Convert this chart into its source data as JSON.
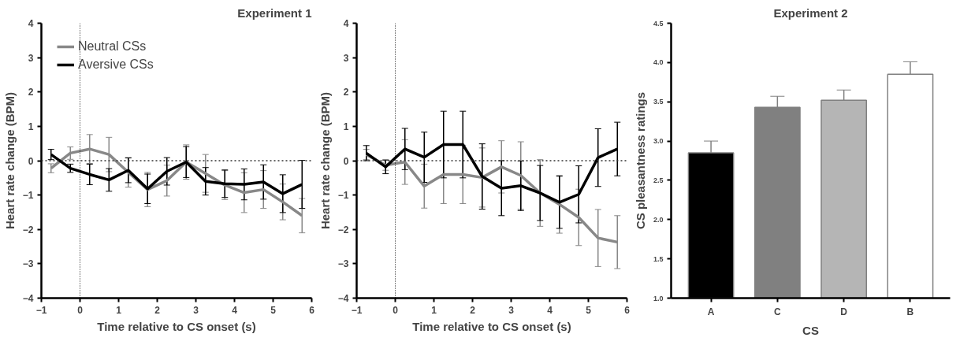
{
  "chart_data": [
    {
      "type": "line",
      "title": "Experiment 1",
      "xlabel": "Time relative to CS onset (s)",
      "ylabel": "Heart rate change (BPM)",
      "x": [
        -0.75,
        -0.25,
        0.25,
        0.75,
        1.25,
        1.75,
        2.25,
        2.75,
        3.25,
        3.75,
        4.25,
        4.75,
        5.25,
        5.75
      ],
      "series": [
        {
          "name": "Neutral CSs",
          "color": "#888888",
          "values": [
            -0.22,
            0.22,
            0.34,
            0.18,
            -0.34,
            -0.84,
            -0.58,
            -0.04,
            -0.37,
            -0.71,
            -0.93,
            -0.84,
            -1.2,
            -1.6
          ],
          "errors": [
            0.13,
            0.18,
            0.42,
            0.5,
            0.43,
            0.5,
            0.45,
            0.5,
            0.55,
            0.42,
            0.58,
            0.55,
            0.52,
            0.5
          ]
        },
        {
          "name": "Aversive CSs",
          "color": "#000000",
          "values": [
            0.18,
            -0.22,
            -0.4,
            -0.56,
            -0.28,
            -0.82,
            -0.31,
            -0.04,
            -0.6,
            -0.67,
            -0.69,
            -0.62,
            -0.96,
            -0.69
          ],
          "errors": [
            0.15,
            0.12,
            0.3,
            0.33,
            0.36,
            0.43,
            0.4,
            0.45,
            0.4,
            0.4,
            0.45,
            0.5,
            0.55,
            0.7
          ]
        }
      ],
      "xlim": [
        -1,
        6
      ],
      "xticks": [
        -1,
        0,
        1,
        2,
        3,
        4,
        5,
        6
      ],
      "ylim": [
        -4,
        4
      ],
      "yticks": [
        -4,
        -3,
        -2,
        -1,
        0,
        1,
        2,
        3,
        4
      ],
      "ref_lines": [
        {
          "axis": "x",
          "value": 0,
          "line_style": "dotted",
          "color": "#000000"
        },
        {
          "axis": "y",
          "value": 0,
          "line_style": "dotted",
          "color": "#333333"
        }
      ],
      "legend": "top left",
      "grid": false,
      "marker": "none",
      "line_style": "solid"
    },
    {
      "type": "line",
      "xlabel": "Time relative to CS onset (s)",
      "ylabel": "Heart rate change (BPM)",
      "x": [
        -0.75,
        -0.25,
        0.25,
        0.75,
        1.25,
        1.75,
        2.25,
        2.75,
        3.25,
        3.75,
        4.25,
        4.75,
        5.25,
        5.75
      ],
      "series": [
        {
          "color": "#888888",
          "values": [
            0.18,
            -0.13,
            -0.04,
            -0.74,
            -0.4,
            -0.4,
            -0.49,
            -0.18,
            -0.43,
            -0.94,
            -1.27,
            -1.65,
            -2.25,
            -2.37
          ],
          "errors": [
            0.15,
            0.15,
            0.65,
            0.64,
            0.85,
            0.85,
            0.86,
            0.76,
            0.98,
            0.97,
            0.84,
            0.82,
            0.83,
            0.77
          ]
        },
        {
          "color": "#000000",
          "values": [
            0.22,
            -0.18,
            0.34,
            0.1,
            0.47,
            0.47,
            -0.46,
            -0.8,
            -0.73,
            -0.94,
            -1.21,
            -0.98,
            0.09,
            0.34
          ],
          "errors": [
            0.22,
            0.2,
            0.6,
            0.73,
            0.97,
            0.97,
            0.95,
            0.8,
            0.72,
            0.8,
            0.76,
            0.83,
            0.84,
            0.78
          ]
        }
      ],
      "xlim": [
        -1,
        6
      ],
      "xticks": [
        -1,
        0,
        1,
        2,
        3,
        4,
        5,
        6
      ],
      "ylim": [
        -4,
        4
      ],
      "yticks": [
        -4,
        -3,
        -2,
        -1,
        0,
        1,
        2,
        3,
        4
      ],
      "ref_lines": [
        {
          "axis": "x",
          "value": 0,
          "line_style": "dotted",
          "color": "#000000"
        },
        {
          "axis": "y",
          "value": 0,
          "line_style": "dotted",
          "color": "#333333"
        }
      ],
      "grid": false,
      "marker": "none",
      "line_style": "solid"
    },
    {
      "type": "bar",
      "title": "Experiment 2",
      "xlabel": "CS",
      "ylabel": "CS pleasantness ratings",
      "categories": [
        "A",
        "C",
        "D",
        "B"
      ],
      "values": [
        2.85,
        3.43,
        3.52,
        3.85
      ],
      "errors": [
        0.15,
        0.14,
        0.13,
        0.16
      ],
      "colors": [
        "#000000",
        "#808080",
        "#b5b5b5",
        "#ffffff"
      ],
      "ylim": [
        1.0,
        4.5
      ],
      "yticks": [
        {
          "value": 1.0,
          "label": "1.0"
        },
        {
          "value": 1.5,
          "label": "1.5"
        },
        {
          "value": 2.0,
          "label": "2.0"
        },
        {
          "value": 2.5,
          "label": "2.5"
        },
        {
          "value": 3.0,
          "label": "3.0"
        },
        {
          "value": 3.5,
          "label": "3.5"
        },
        {
          "value": 4.0,
          "label": "4.0"
        },
        {
          "value": 4.5,
          "label": "4.5"
        }
      ],
      "grid": false
    }
  ]
}
